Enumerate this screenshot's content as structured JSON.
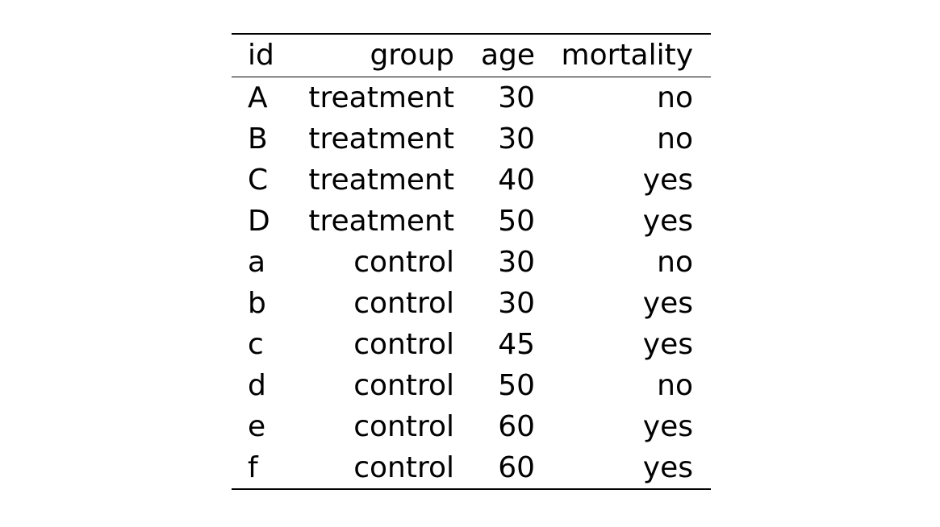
{
  "table": {
    "columns": [
      "id",
      "group",
      "age",
      "mortality"
    ],
    "rows": [
      [
        "A",
        "treatment",
        "30",
        "no"
      ],
      [
        "B",
        "treatment",
        "30",
        "no"
      ],
      [
        "C",
        "treatment",
        "40",
        "yes"
      ],
      [
        "D",
        "treatment",
        "50",
        "yes"
      ],
      [
        "a",
        "control",
        "30",
        "no"
      ],
      [
        "b",
        "control",
        "30",
        "yes"
      ],
      [
        "c",
        "control",
        "45",
        "yes"
      ],
      [
        "d",
        "control",
        "50",
        "no"
      ],
      [
        "e",
        "control",
        "60",
        "yes"
      ],
      [
        "f",
        "control",
        "60",
        "yes"
      ]
    ]
  }
}
